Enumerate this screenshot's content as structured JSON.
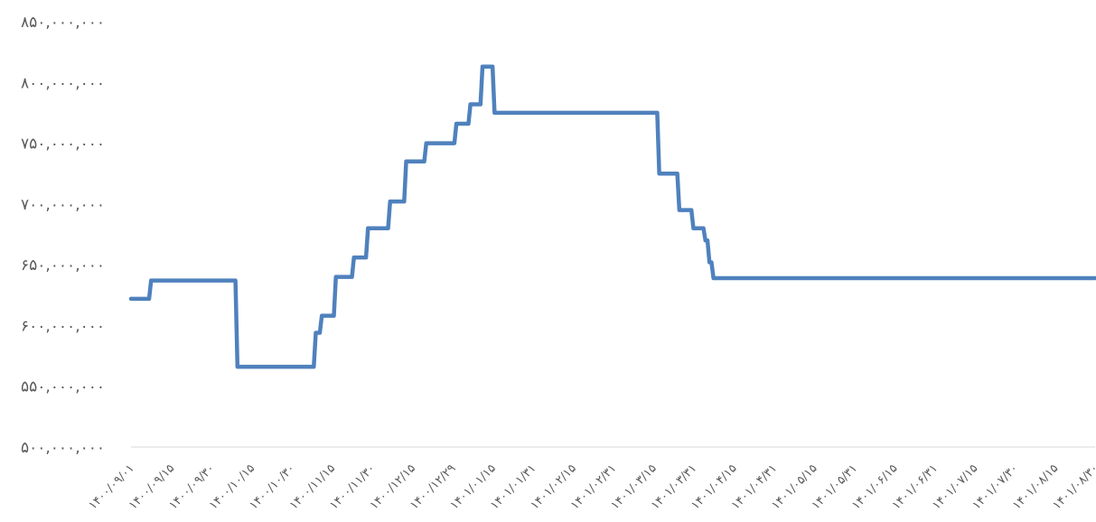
{
  "chart_data": {
    "type": "line",
    "title": "",
    "xlabel": "",
    "ylabel": "",
    "ylim": [
      500000000,
      850000000
    ],
    "grid": false,
    "legend": "none",
    "color": "#4f81bd",
    "y_ticks": [
      {
        "value": 850000000,
        "label": "۸۵۰,۰۰۰,۰۰۰"
      },
      {
        "value": 800000000,
        "label": "۸۰۰,۰۰۰,۰۰۰"
      },
      {
        "value": 750000000,
        "label": "۷۵۰,۰۰۰,۰۰۰"
      },
      {
        "value": 700000000,
        "label": "۷۰۰,۰۰۰,۰۰۰"
      },
      {
        "value": 650000000,
        "label": "۶۵۰,۰۰۰,۰۰۰"
      },
      {
        "value": 600000000,
        "label": "۶۰۰,۰۰۰,۰۰۰"
      },
      {
        "value": 550000000,
        "label": "۵۵۰,۰۰۰,۰۰۰"
      },
      {
        "value": 500000000,
        "label": "۵۰۰,۰۰۰,۰۰۰"
      }
    ],
    "x_tick_labels": [
      "۱۴۰۰/۰۹/۰۱",
      "۱۴۰۰/۰۹/۱۵",
      "۱۴۰۰/۰۹/۳۰",
      "۱۴۰۰/۱۰/۱۵",
      "۱۴۰۰/۱۰/۳۰",
      "۱۴۰۰/۱۱/۱۵",
      "۱۴۰۰/۱۱/۳۰",
      "۱۴۰۰/۱۲/۱۵",
      "۱۴۰۰/۱۲/۲۹",
      "۱۴۰۱/۰۱/۱۵",
      "۱۴۰۱/۰۱/۳۱",
      "۱۴۰۱/۰۲/۱۵",
      "۱۴۰۱/۰۲/۳۱",
      "۱۴۰۱/۰۳/۱۵",
      "۱۴۰۱/۰۳/۳۱",
      "۱۴۰۱/۰۴/۱۵",
      "۱۴۰۱/۰۴/۳۱",
      "۱۴۰۱/۰۵/۱۵",
      "۱۴۰۱/۰۵/۳۱",
      "۱۴۰۱/۰۶/۱۵",
      "۱۴۰۱/۰۶/۳۱",
      "۱۴۰۱/۰۷/۱۵",
      "۱۴۰۱/۰۷/۳۰",
      "۱۴۰۱/۰۸/۱۵",
      "۱۴۰۱/۰۸/۳۰"
    ],
    "x_range": [
      0,
      24
    ],
    "series": [
      {
        "x": [
          0,
          0.45,
          0.5,
          2.6,
          2.65,
          4.55,
          4.6,
          4.7,
          4.75,
          5.05,
          5.1,
          5.5,
          5.55,
          5.85,
          5.9,
          6.4,
          6.45,
          6.8,
          6.85,
          7.3,
          7.35,
          8.05,
          8.1,
          8.4,
          8.45,
          8.7,
          8.75,
          9.0,
          9.05,
          13.1,
          13.15,
          13.6,
          13.65,
          13.95,
          14.0,
          14.25,
          14.3,
          14.35,
          14.4,
          14.45,
          14.5,
          14.85,
          14.9,
          15.1,
          15.15,
          24
        ],
        "y": [
          622000000,
          622000000,
          637000000,
          637000000,
          566000000,
          566000000,
          594000000,
          594000000,
          608000000,
          608000000,
          640000000,
          640000000,
          656000000,
          656000000,
          680000000,
          680000000,
          702000000,
          702000000,
          735000000,
          735000000,
          750000000,
          750000000,
          766000000,
          766000000,
          782000000,
          782000000,
          813000000,
          813000000,
          775000000,
          775000000,
          725000000,
          725000000,
          695000000,
          695000000,
          680000000,
          680000000,
          670000000,
          670000000,
          652000000,
          652000000,
          639000000,
          639000000,
          639000000,
          639000000,
          639000000,
          639000000
        ]
      }
    ]
  }
}
